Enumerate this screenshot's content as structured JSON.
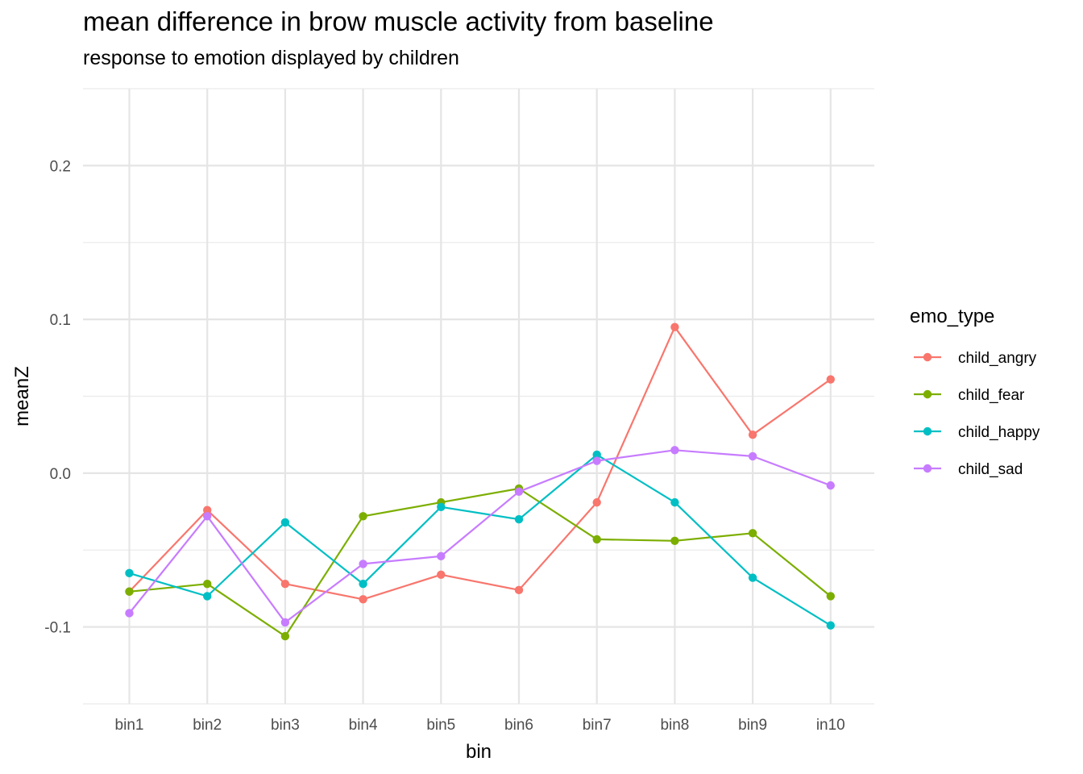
{
  "chart_data": {
    "type": "line",
    "title": "mean difference in brow muscle activity from baseline",
    "subtitle": "response to emotion displayed by children",
    "xlabel": "bin",
    "ylabel": "meanZ",
    "categories": [
      "bin1",
      "bin2",
      "bin3",
      "bin4",
      "bin5",
      "bin6",
      "bin7",
      "bin8",
      "bin9",
      "in10"
    ],
    "ylim": [
      -0.15,
      0.25
    ],
    "y_ticks": [
      -0.1,
      0.0,
      0.1,
      0.2
    ],
    "y_tick_labels": [
      "-0.1",
      "0.0",
      "0.1",
      "0.2"
    ],
    "y_minor_ticks": [
      -0.15,
      -0.05,
      0.05,
      0.15,
      0.25
    ],
    "grid": true,
    "legend": {
      "title": "emo_type",
      "position": "right"
    },
    "series": [
      {
        "name": "child_angry",
        "color": "#F8766D",
        "values": [
          -0.077,
          -0.024,
          -0.072,
          -0.082,
          -0.066,
          -0.076,
          -0.019,
          0.095,
          0.025,
          0.061
        ]
      },
      {
        "name": "child_fear",
        "color": "#7CAE00",
        "values": [
          -0.077,
          -0.072,
          -0.106,
          -0.028,
          -0.019,
          -0.01,
          -0.043,
          -0.044,
          -0.039,
          -0.08
        ]
      },
      {
        "name": "child_happy",
        "color": "#00BFC4",
        "values": [
          -0.065,
          -0.08,
          -0.032,
          -0.072,
          -0.022,
          -0.03,
          0.012,
          -0.019,
          -0.068,
          -0.099
        ]
      },
      {
        "name": "child_sad",
        "color": "#C77CFF",
        "values": [
          -0.091,
          -0.028,
          -0.097,
          -0.059,
          -0.054,
          -0.012,
          0.008,
          0.015,
          0.011,
          -0.008
        ]
      }
    ]
  }
}
